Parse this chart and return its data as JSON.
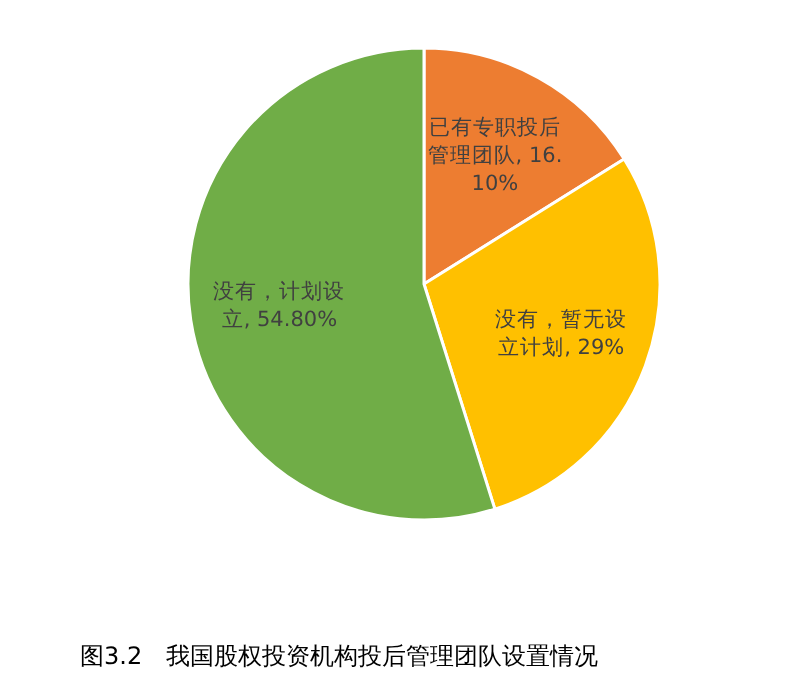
{
  "chart_data": {
    "type": "pie",
    "title": "图3.2　我国股权投资机构投后管理团队设置情况",
    "categories": [
      "已有专职投后管理团队",
      "没有，暂无设立计划",
      "没有，计划设立"
    ],
    "values": [
      16.1,
      29,
      54.8
    ],
    "value_labels": [
      "16.10%",
      "29%",
      "54.80%"
    ],
    "colors": [
      "#ed7d31",
      "#ffc000",
      "#70ad47"
    ],
    "legend": false
  }
}
